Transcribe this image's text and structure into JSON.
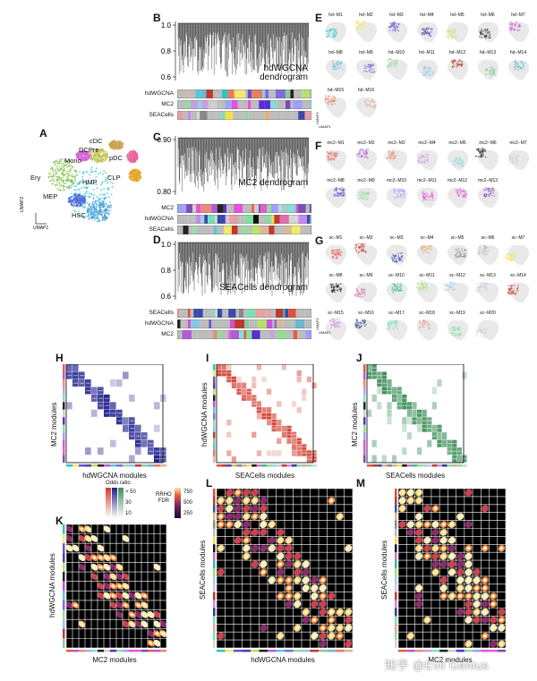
{
  "panel_labels": [
    "A",
    "B",
    "C",
    "D",
    "E",
    "F",
    "G",
    "H",
    "I",
    "J",
    "K",
    "L",
    "M"
  ],
  "colors": {
    "hdwgcna": [
      "#2ec4c4",
      "#f3e96b",
      "#6a4fd1",
      "#5a3ba8",
      "#b6e36a",
      "#222222",
      "#d04fd6",
      "#5ac7d6",
      "#7d6be0",
      "#9fd8a3",
      "#88c8e6",
      "#c0392b",
      "#8ec99b",
      "#6fb7d1",
      "#e67e5a",
      "#d9b99b"
    ],
    "mc2": [
      "#e85b4b",
      "#b45ad9",
      "#e88c7a",
      "#c8a0e0",
      "#7fe0d6",
      "#222222",
      "#cfcfcf",
      "#5a2dd6",
      "#8ee08e",
      "#a0a0ff",
      "#e94fe0",
      "#e35bd6",
      "#7a4fb2"
    ],
    "sea": [
      "#e74c3c",
      "#c0392b",
      "#3949ab",
      "#e3b07a",
      "#888888",
      "#bbbbbb",
      "#f4e04d",
      "#111111",
      "#e06fb0",
      "#3fb5a6",
      "#9be26a",
      "#9ccfe6",
      "#d6c1ea",
      "#c0392b",
      "#c78af0",
      "#333a8a",
      "#7ae0b5",
      "#e8a0a0",
      "#7fe0a0",
      "#d6d6d6"
    ]
  },
  "panel_a": {
    "cell_types": [
      "cDC",
      "DCPre",
      "Mono",
      "pDC",
      "Ery",
      "CLP",
      "HMP",
      "MEP",
      "HSC"
    ],
    "axis_y": "UMAP2",
    "axis_x": "UMAP1"
  },
  "dendrograms": [
    {
      "title": "hdWGCNA dendrogram",
      "yticks": [
        "1.0",
        "0.8",
        "0.6"
      ],
      "bars": [
        "hdWGCNA",
        "MC2",
        "SEACells"
      ]
    },
    {
      "title": "MC2 dendrogram",
      "yticks": [
        "0.90",
        "0.80"
      ],
      "bars": [
        "MC2",
        "hdWGCNA",
        "SEACells"
      ]
    },
    {
      "title": "SEACells dendrogram",
      "yticks": [
        "1.0",
        "0.8",
        "0.6"
      ],
      "bars": [
        "SEACells",
        "hdWGCNA",
        "MC2"
      ]
    }
  ],
  "umap_modules": {
    "hd": [
      "hd−M1",
      "hd−M2",
      "hd−M3",
      "hd−M4",
      "hd−M5",
      "hd−M6",
      "hd−M7",
      "hd−M8",
      "hd−M9",
      "hd−M10",
      "hd−M11",
      "hd−M12",
      "hd−M13",
      "hd−M14",
      "hd−M15",
      "hd−M16"
    ],
    "mc2": [
      "mc2−M1",
      "mc2−M2",
      "mc2−M3",
      "mc2−M4",
      "mc2−M5",
      "mc2−M6",
      "mc2−M7",
      "mc2−M8",
      "mc2−M9",
      "mc2−M10",
      "mc2−M11",
      "mc2−M12",
      "mc2−M13"
    ],
    "sc": [
      "sc−M1",
      "sc−M2",
      "sc−M3",
      "sc−M4",
      "sc−M5",
      "sc−M6",
      "sc−M7",
      "sc−M8",
      "sc−M9",
      "sc−M10",
      "sc−M11",
      "sc−M12",
      "sc−M13",
      "sc−M14",
      "sc−M15",
      "sc−M16",
      "sc−M17",
      "sc−M18",
      "sc−M19",
      "sc−M20"
    ],
    "axis_y": "UMAP2",
    "axis_x": "UMAP1"
  },
  "overlap_heatmaps": [
    {
      "ylabel": "MC2 modules",
      "xlabel": "hdWGCNA modules",
      "color": "#1f1f8f"
    },
    {
      "ylabel": "hdWGCNA modules",
      "xlabel": "SEACells modules",
      "color": "#d23b2b"
    },
    {
      "ylabel": "MC2 modules",
      "xlabel": "SEACells modules",
      "color": "#3e8f5a"
    }
  ],
  "legend": {
    "odds_title": "Odds ratio",
    "odds_ticks": [
      "> 50",
      "30",
      "10"
    ],
    "rrho_title": "RRHO",
    "rrho_sub": "FDR",
    "rrho_ticks": [
      "750",
      "500",
      "250"
    ]
  },
  "rrho_heatmaps": [
    {
      "ylabel": "hdWGCNA modules",
      "xlabel": "MC2 modules"
    },
    {
      "ylabel": "SEACells modules",
      "xlabel": "hdWGCNA modules"
    },
    {
      "ylabel": "SEACells modules",
      "xlabel": "MC2 modules"
    }
  ],
  "watermark": "知乎 @Evil Genius"
}
